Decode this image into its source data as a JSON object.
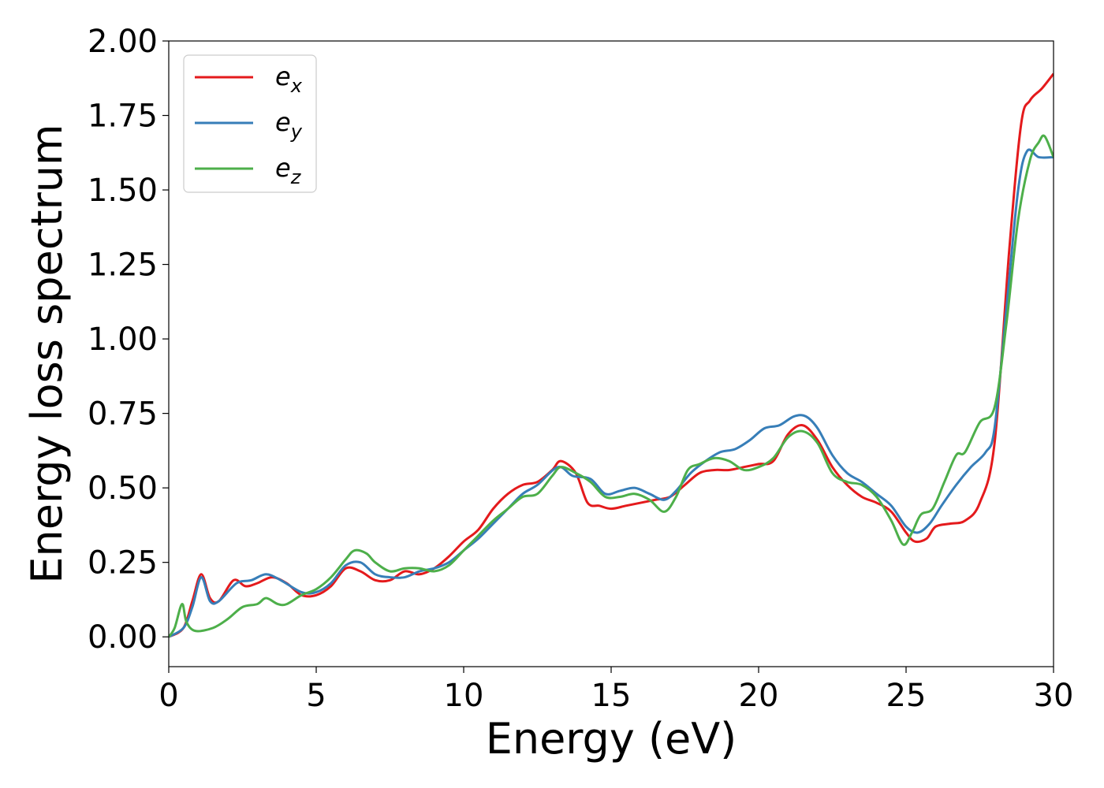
{
  "chart_data": {
    "type": "line",
    "title": "",
    "xlabel": "Energy (eV)",
    "ylabel": "Energy loss spectrum",
    "xlim": [
      0,
      30
    ],
    "ylim": [
      -0.1,
      2.0
    ],
    "xticks": [
      0,
      5,
      10,
      15,
      20,
      25,
      30
    ],
    "xtick_labels": [
      "0",
      "5",
      "10",
      "15",
      "20",
      "25",
      "30"
    ],
    "yticks": [
      0.0,
      0.25,
      0.5,
      0.75,
      1.0,
      1.25,
      1.5,
      1.75,
      2.0
    ],
    "ytick_labels": [
      "0.00",
      "0.25",
      "0.50",
      "0.75",
      "1.00",
      "1.25",
      "1.50",
      "1.75",
      "2.00"
    ],
    "grid": false,
    "legend_position": "top-left",
    "series": [
      {
        "name": "e",
        "subscript": "x",
        "color": "#e41a1c",
        "points": [
          [
            0,
            0
          ],
          [
            0.5,
            0.03
          ],
          [
            0.8,
            0.12
          ],
          [
            1.1,
            0.21
          ],
          [
            1.4,
            0.13
          ],
          [
            1.7,
            0.12
          ],
          [
            2.2,
            0.19
          ],
          [
            2.6,
            0.17
          ],
          [
            3.0,
            0.18
          ],
          [
            3.5,
            0.2
          ],
          [
            4.0,
            0.18
          ],
          [
            4.5,
            0.14
          ],
          [
            5.0,
            0.14
          ],
          [
            5.5,
            0.17
          ],
          [
            6.0,
            0.23
          ],
          [
            6.5,
            0.22
          ],
          [
            7.0,
            0.19
          ],
          [
            7.5,
            0.19
          ],
          [
            8.0,
            0.22
          ],
          [
            8.5,
            0.21
          ],
          [
            9.0,
            0.23
          ],
          [
            9.5,
            0.27
          ],
          [
            10.0,
            0.32
          ],
          [
            10.5,
            0.36
          ],
          [
            11.0,
            0.43
          ],
          [
            11.5,
            0.48
          ],
          [
            12.0,
            0.51
          ],
          [
            12.5,
            0.52
          ],
          [
            13.0,
            0.56
          ],
          [
            13.3,
            0.59
          ],
          [
            13.8,
            0.55
          ],
          [
            14.2,
            0.45
          ],
          [
            14.6,
            0.44
          ],
          [
            15.0,
            0.43
          ],
          [
            15.5,
            0.44
          ],
          [
            16.0,
            0.45
          ],
          [
            16.5,
            0.46
          ],
          [
            17.0,
            0.47
          ],
          [
            17.5,
            0.51
          ],
          [
            18.0,
            0.55
          ],
          [
            18.5,
            0.56
          ],
          [
            19.0,
            0.56
          ],
          [
            19.5,
            0.57
          ],
          [
            20.0,
            0.58
          ],
          [
            20.5,
            0.59
          ],
          [
            21.0,
            0.68
          ],
          [
            21.5,
            0.71
          ],
          [
            22.0,
            0.66
          ],
          [
            22.5,
            0.57
          ],
          [
            23.0,
            0.51
          ],
          [
            23.5,
            0.47
          ],
          [
            24.0,
            0.45
          ],
          [
            24.5,
            0.42
          ],
          [
            25.0,
            0.35
          ],
          [
            25.3,
            0.32
          ],
          [
            25.7,
            0.33
          ],
          [
            26.0,
            0.37
          ],
          [
            26.5,
            0.38
          ],
          [
            27.0,
            0.39
          ],
          [
            27.5,
            0.45
          ],
          [
            28.0,
            0.65
          ],
          [
            28.5,
            1.3
          ],
          [
            28.9,
            1.72
          ],
          [
            29.2,
            1.8
          ],
          [
            29.6,
            1.84
          ],
          [
            30.0,
            1.89
          ]
        ]
      },
      {
        "name": "e",
        "subscript": "y",
        "color": "#377eb8",
        "points": [
          [
            0,
            0
          ],
          [
            0.5,
            0.03
          ],
          [
            0.8,
            0.1
          ],
          [
            1.1,
            0.2
          ],
          [
            1.4,
            0.12
          ],
          [
            1.7,
            0.12
          ],
          [
            2.3,
            0.18
          ],
          [
            2.8,
            0.19
          ],
          [
            3.3,
            0.21
          ],
          [
            3.8,
            0.19
          ],
          [
            4.5,
            0.15
          ],
          [
            5.0,
            0.15
          ],
          [
            5.5,
            0.18
          ],
          [
            6.0,
            0.24
          ],
          [
            6.5,
            0.25
          ],
          [
            7.0,
            0.21
          ],
          [
            7.5,
            0.2
          ],
          [
            8.0,
            0.2
          ],
          [
            8.5,
            0.22
          ],
          [
            9.0,
            0.23
          ],
          [
            9.5,
            0.25
          ],
          [
            10.0,
            0.29
          ],
          [
            10.5,
            0.33
          ],
          [
            11.0,
            0.38
          ],
          [
            11.5,
            0.43
          ],
          [
            12.0,
            0.48
          ],
          [
            12.5,
            0.51
          ],
          [
            13.2,
            0.57
          ],
          [
            13.7,
            0.54
          ],
          [
            14.3,
            0.53
          ],
          [
            14.8,
            0.48
          ],
          [
            15.3,
            0.49
          ],
          [
            15.8,
            0.5
          ],
          [
            16.3,
            0.48
          ],
          [
            16.8,
            0.46
          ],
          [
            17.2,
            0.49
          ],
          [
            17.7,
            0.55
          ],
          [
            18.2,
            0.59
          ],
          [
            18.7,
            0.62
          ],
          [
            19.2,
            0.63
          ],
          [
            19.7,
            0.66
          ],
          [
            20.2,
            0.7
          ],
          [
            20.7,
            0.71
          ],
          [
            21.2,
            0.74
          ],
          [
            21.6,
            0.74
          ],
          [
            22.0,
            0.7
          ],
          [
            22.5,
            0.61
          ],
          [
            23.0,
            0.55
          ],
          [
            23.5,
            0.52
          ],
          [
            24.0,
            0.48
          ],
          [
            24.5,
            0.44
          ],
          [
            25.0,
            0.37
          ],
          [
            25.4,
            0.35
          ],
          [
            25.8,
            0.38
          ],
          [
            26.2,
            0.44
          ],
          [
            26.7,
            0.51
          ],
          [
            27.2,
            0.57
          ],
          [
            27.7,
            0.62
          ],
          [
            28.0,
            0.7
          ],
          [
            28.4,
            1.1
          ],
          [
            28.8,
            1.5
          ],
          [
            29.1,
            1.63
          ],
          [
            29.5,
            1.61
          ],
          [
            30.0,
            1.61
          ]
        ]
      },
      {
        "name": "e",
        "subscript": "z",
        "color": "#4daf4a",
        "points": [
          [
            0,
            0
          ],
          [
            0.2,
            0.03
          ],
          [
            0.45,
            0.11
          ],
          [
            0.6,
            0.05
          ],
          [
            0.9,
            0.02
          ],
          [
            1.5,
            0.03
          ],
          [
            2.0,
            0.06
          ],
          [
            2.5,
            0.1
          ],
          [
            3.0,
            0.11
          ],
          [
            3.3,
            0.13
          ],
          [
            3.7,
            0.11
          ],
          [
            4.0,
            0.11
          ],
          [
            4.5,
            0.14
          ],
          [
            5.0,
            0.16
          ],
          [
            5.5,
            0.2
          ],
          [
            6.0,
            0.26
          ],
          [
            6.3,
            0.29
          ],
          [
            6.7,
            0.28
          ],
          [
            7.0,
            0.25
          ],
          [
            7.5,
            0.22
          ],
          [
            8.0,
            0.23
          ],
          [
            8.5,
            0.23
          ],
          [
            9.0,
            0.22
          ],
          [
            9.5,
            0.24
          ],
          [
            10.0,
            0.29
          ],
          [
            10.5,
            0.34
          ],
          [
            11.0,
            0.39
          ],
          [
            11.5,
            0.43
          ],
          [
            12.0,
            0.47
          ],
          [
            12.5,
            0.48
          ],
          [
            13.0,
            0.54
          ],
          [
            13.3,
            0.57
          ],
          [
            13.8,
            0.55
          ],
          [
            14.3,
            0.52
          ],
          [
            14.8,
            0.47
          ],
          [
            15.3,
            0.47
          ],
          [
            15.8,
            0.48
          ],
          [
            16.3,
            0.46
          ],
          [
            16.8,
            0.42
          ],
          [
            17.2,
            0.47
          ],
          [
            17.6,
            0.56
          ],
          [
            18.0,
            0.58
          ],
          [
            18.5,
            0.6
          ],
          [
            19.0,
            0.59
          ],
          [
            19.5,
            0.56
          ],
          [
            20.0,
            0.57
          ],
          [
            20.5,
            0.6
          ],
          [
            21.0,
            0.67
          ],
          [
            21.5,
            0.69
          ],
          [
            22.0,
            0.65
          ],
          [
            22.5,
            0.55
          ],
          [
            23.0,
            0.52
          ],
          [
            23.5,
            0.51
          ],
          [
            24.0,
            0.47
          ],
          [
            24.5,
            0.39
          ],
          [
            24.9,
            0.31
          ],
          [
            25.2,
            0.35
          ],
          [
            25.5,
            0.41
          ],
          [
            25.9,
            0.43
          ],
          [
            26.3,
            0.52
          ],
          [
            26.7,
            0.61
          ],
          [
            27.0,
            0.62
          ],
          [
            27.5,
            0.72
          ],
          [
            28.0,
            0.77
          ],
          [
            28.4,
            1.05
          ],
          [
            28.8,
            1.4
          ],
          [
            29.2,
            1.6
          ],
          [
            29.5,
            1.66
          ],
          [
            29.7,
            1.68
          ],
          [
            30.0,
            1.61
          ]
        ]
      }
    ]
  }
}
